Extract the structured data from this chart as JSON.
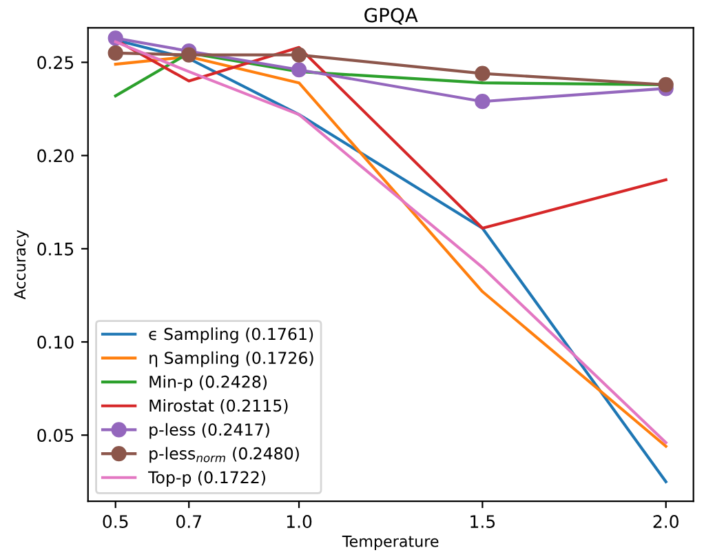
{
  "chart_data": {
    "type": "line",
    "title": "GPQA",
    "xlabel": "Temperature",
    "ylabel": "Accuracy",
    "x": [
      0.5,
      0.7,
      1.0,
      1.5,
      2.0
    ],
    "xlim": [
      0.425,
      2.075
    ],
    "xticks": [
      {
        "value": 0.5,
        "label": "0.5"
      },
      {
        "value": 0.7,
        "label": "0.7"
      },
      {
        "value": 1.0,
        "label": "1.0"
      },
      {
        "value": 1.5,
        "label": "1.5"
      },
      {
        "value": 2.0,
        "label": "2.0"
      }
    ],
    "ylim": [
      0.0145,
      0.2685
    ],
    "yticks": [
      {
        "value": 0.05,
        "label": "0.05"
      },
      {
        "value": 0.1,
        "label": "0.10"
      },
      {
        "value": 0.15,
        "label": "0.15"
      },
      {
        "value": 0.2,
        "label": "0.20"
      },
      {
        "value": 0.25,
        "label": "0.25"
      }
    ],
    "grid": false,
    "legend": "bottom left",
    "series": [
      {
        "name": "ϵ Sampling (0.1761)",
        "color": "#1f77b4",
        "marker": "none",
        "values": [
          0.262,
          0.252,
          0.222,
          0.161,
          0.025
        ]
      },
      {
        "name": "η Sampling (0.1726)",
        "color": "#ff7f0e",
        "marker": "none",
        "values": [
          0.249,
          0.253,
          0.239,
          0.127,
          0.044
        ]
      },
      {
        "name": "Min-p (0.2428)",
        "color": "#2ca02c",
        "marker": "none",
        "values": [
          0.232,
          0.255,
          0.245,
          0.239,
          0.238
        ]
      },
      {
        "name": "Mirostat (0.2115)",
        "color": "#d62728",
        "marker": "none",
        "values": [
          0.262,
          0.24,
          0.258,
          0.161,
          0.187
        ]
      },
      {
        "name": "p-less (0.2417)",
        "color": "#9467bd",
        "marker": "circle",
        "values": [
          0.263,
          0.256,
          0.246,
          0.229,
          0.236
        ]
      },
      {
        "name": "p-less$_{norm}$ (0.2480)",
        "color": "#8c564b",
        "marker": "circle",
        "values": [
          0.255,
          0.254,
          0.254,
          0.244,
          0.238
        ]
      },
      {
        "name": "Top-p (0.1722)",
        "color": "#e377c2",
        "marker": "none",
        "values": [
          0.261,
          0.245,
          0.222,
          0.14,
          0.046
        ]
      }
    ]
  }
}
